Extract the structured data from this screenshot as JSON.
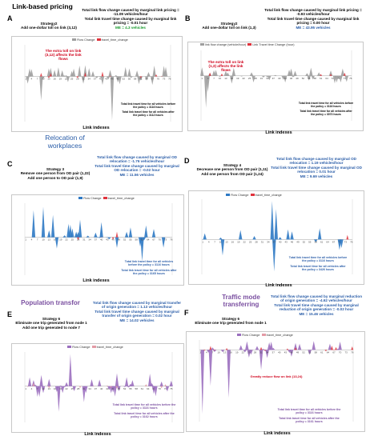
{
  "sections": {
    "link_based": "Link-based pricing",
    "relocation": "Relocation of workplaces",
    "population": "Population transfor",
    "traffic_mode": "Traffic mode transferring"
  },
  "panels": {
    "A": {
      "letter": "A",
      "strategy": [
        "Strategy2",
        "Add one-dollar toll on link (3,12)"
      ],
      "stats": [
        "Total link flow change caused by marginal link pricing = -11.09 vehicles/hour",
        "Total link travel time change caused by marginal link pricing = -0.01 hour",
        "ME = 4.3 vehicles"
      ],
      "legend": [
        "Flow Change",
        "travel_time_change"
      ],
      "callout": [
        "The extra toll on link",
        "(3,12) affects the link",
        "flows"
      ],
      "note": [
        "Total link travel time for all vehicles before the policy = 3116 hours",
        "Total link travel time for all vehicles after the policy = 3112 hours"
      ],
      "xlabel": "Link indexes"
    },
    "B": {
      "letter": "B",
      "strategy": [
        "Strategy2",
        "Add one-dollar toll on link (1,3)"
      ],
      "stats": [
        "Total link flow change caused by marginal link pricing = -0.93 vehicles/hour",
        "Total link travel time change caused by marginal link pricing = 0.00 hour",
        "ME = 43.95 vehicles"
      ],
      "legend": [
        "link flow change (vehicle/hour)",
        "Link Travel time Change (hour)"
      ],
      "callout": [
        "The extra toll on link",
        "(1,3) affects the link",
        "flows"
      ],
      "note": [
        "Total link travel time for all vehicles before the policy = 3116 hours",
        "Total link travel time for all vehicles after the policy = 3073 hours"
      ],
      "xlabel": "Link indexes"
    },
    "C": {
      "letter": "C",
      "strategy": [
        "Strategy 3",
        "Remove one person from OD pair (1,22)",
        "Add one person to OD pair (1,9)"
      ],
      "stats": [
        "Total link flow change caused by marginal OD relocation = -1.76 vehicles/hour",
        "Total link travel time change caused by marginal OD relocation = -0.02 hour",
        "ME = 11.56 vehicles"
      ],
      "legend": [
        "Flow Change",
        "travel_time_change"
      ],
      "note": [
        "Total link travel time for all vehicles before the policy = 3116 hours",
        "Total link travel time for all vehicles after the policy = 3165 hours"
      ],
      "xlabel": "Link indexes"
    },
    "D": {
      "letter": "D",
      "strategy": [
        "Strategy 4",
        "Decrease one person from OD pair (1,11)",
        "Add one person from OD pair (1,24)"
      ],
      "stats": [
        "Total link flow change caused by marginal OD relocation = 1.19 vehicles/hour",
        "Total link travel time change caused by marginal OD relocation = 0.01 hour",
        "ME = 9.69 vehicles"
      ],
      "legend": [
        "Flow Change",
        "travel_time_change"
      ],
      "note": [
        "Total link travel time for all vehicles before the policy = 3116 hours",
        "Total link travel time for all vehicles after the policy = 3426 hours"
      ],
      "xlabel": "Link indexes"
    },
    "E": {
      "letter": "E",
      "strategy": [
        "Strategy 6",
        "Eliminate one trip generated from node 1",
        "Add one trip generated to node 7"
      ],
      "stats": [
        "Total link flow change caused by marginal transfer of origin generation = 1.13 vehicles/hour",
        "Total link travel time change caused by marginal transfer of origin generation = 0.02 hour",
        "ME = 14.02 vehicles"
      ],
      "legend": [
        "Flow Change",
        "travel_time_change"
      ],
      "note": [
        "Total link travel time for all vehicles before the policy = 3116 hours",
        "Total link travel time for all vehicles after the policy = 3162 hours"
      ],
      "xlabel": "Link indexes"
    },
    "F": {
      "letter": "F",
      "strategy": [
        "Strategy 6",
        "Eliminate one trip generated from node 1"
      ],
      "stats": [
        "Total link flow change caused by marginal reduction of origin generation = -4.62 vehicles/hour",
        "Total link travel time change caused by marginal reduction of origin generation = -0.02 hour",
        "ME = 15.46 vehicles"
      ],
      "legend": [
        "Flow Change",
        "travel_time_change"
      ],
      "callout": [
        "Greatly reduce flow on link (13,24)"
      ],
      "note": [
        "Total link travel time for all vehicles before the policy = 3116 hours",
        "Total link travel time for all vehicles after the policy = 3161 hours"
      ],
      "xlabel": "Link indexes"
    }
  },
  "colors": {
    "flow_grey": "#9e9e9e",
    "flow_blue": "#2e79c4",
    "flow_purple": "#9b6fbf",
    "travel_red": "#e0323c",
    "travel_pink": "#e39aa5",
    "title_blue": "#2a5da8",
    "title_purple": "#7a4fa0"
  }
}
